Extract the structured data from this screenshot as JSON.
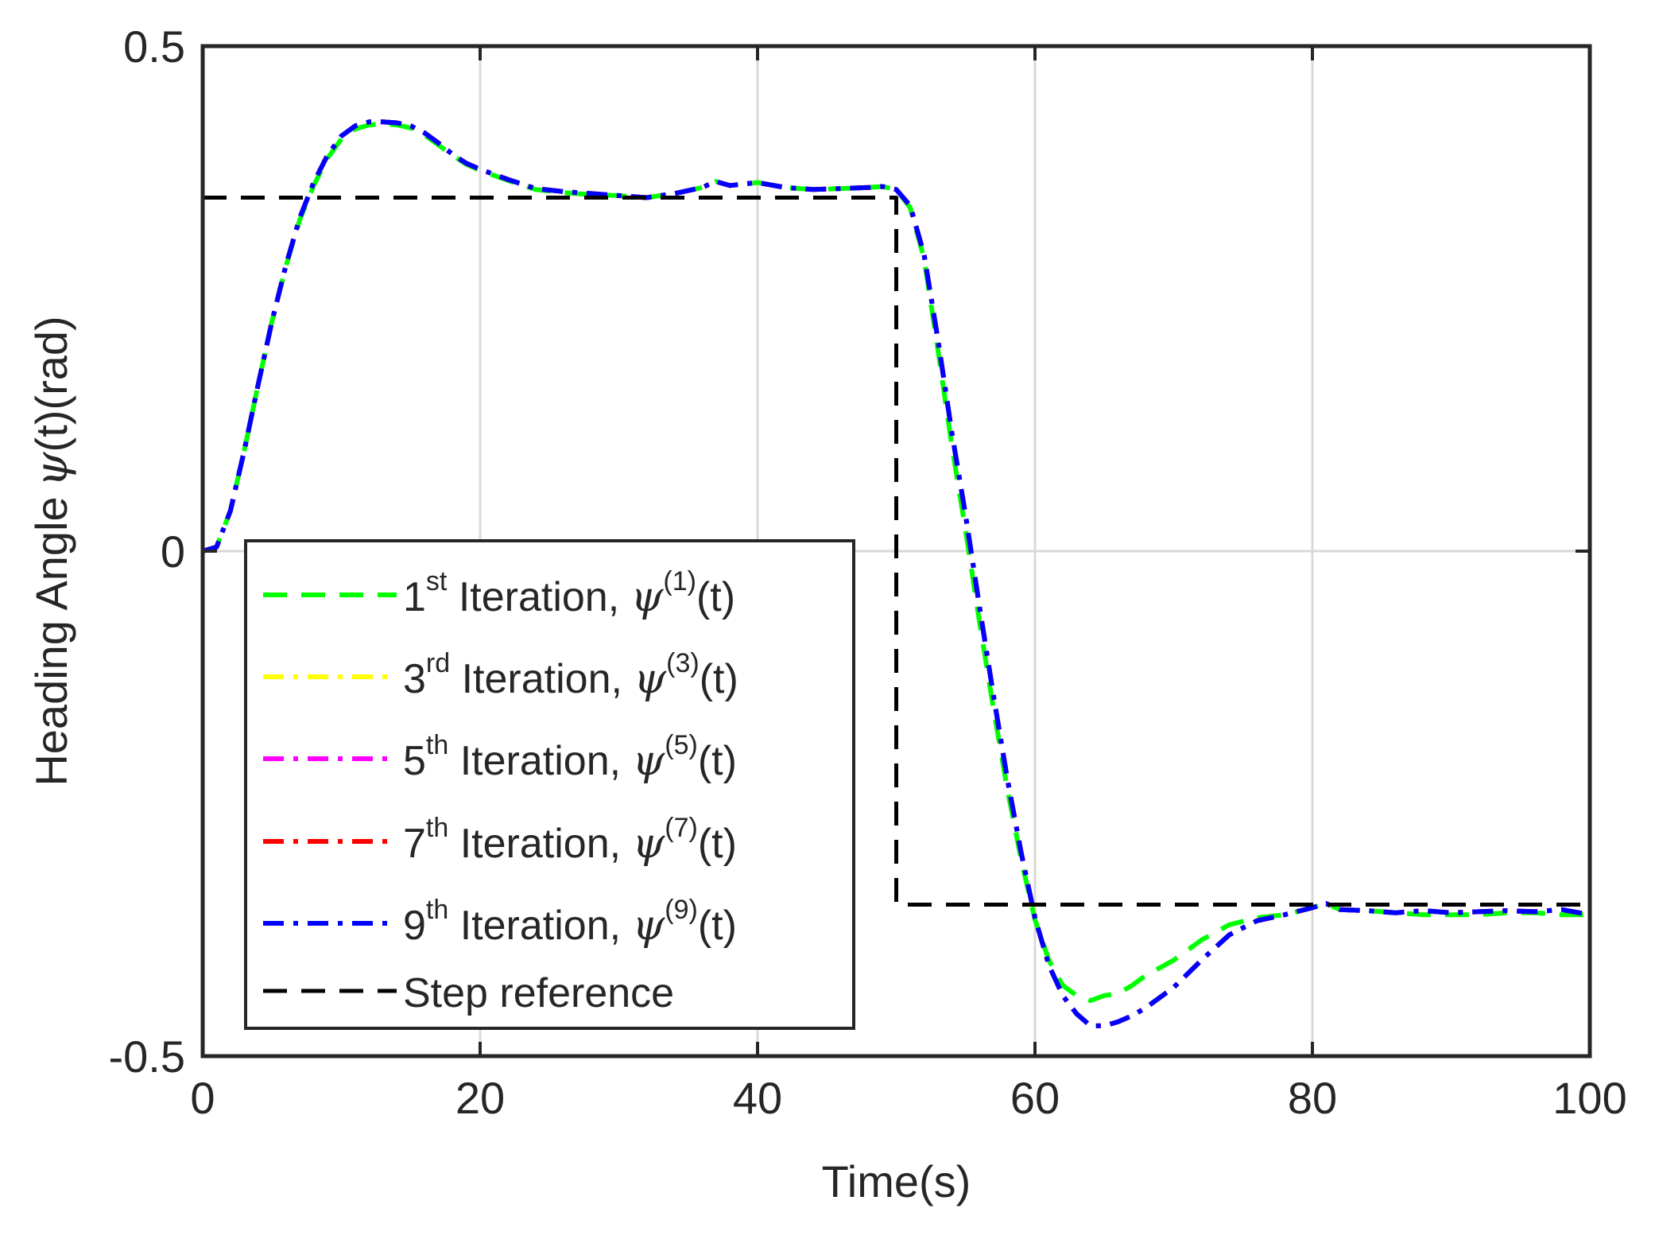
{
  "chart_data": {
    "type": "line",
    "title": "",
    "xlabel": "Time(s)",
    "ylabel": {
      "prefix": "Heading Angle",
      "symbol": "ψ",
      "suffix": "(t)(rad)"
    },
    "xlim": [
      0,
      100
    ],
    "ylim": [
      -0.5,
      0.5
    ],
    "xticks": [
      0,
      20,
      40,
      60,
      80,
      100
    ],
    "xtick_labels": [
      "0",
      "20",
      "40",
      "60",
      "80",
      "100"
    ],
    "yticks": [
      -0.5,
      0,
      0.5
    ],
    "ytick_labels": [
      "-0.5",
      "0",
      "0.5"
    ],
    "grid": true,
    "legend_position": "bottom-left",
    "series": [
      {
        "name": "1st Iteration, ψ(1)(t)",
        "legend": {
          "num": "1",
          "sup": "st",
          "mid": " Iteration, ",
          "psi": "ψ",
          "idx": "(1)",
          "tail": "(t)"
        },
        "color": "#00ff00",
        "style": "dashed",
        "x": [
          0,
          1,
          2,
          3,
          4,
          5,
          6,
          7,
          8,
          9,
          10,
          11,
          12,
          13,
          14,
          15,
          16,
          17,
          18,
          19,
          20,
          22,
          24,
          26,
          28,
          30,
          32,
          34,
          36,
          37,
          38,
          40,
          42,
          44,
          46,
          48,
          49,
          50,
          51,
          52,
          53,
          54,
          55,
          56,
          57,
          58,
          59,
          60,
          61,
          62,
          63,
          64,
          65,
          66,
          67,
          68,
          70,
          72,
          74,
          76,
          78,
          80,
          81,
          82,
          84,
          86,
          88,
          90,
          92,
          94,
          96,
          98,
          100
        ],
        "y": [
          0,
          0.004,
          0.04,
          0.1,
          0.165,
          0.228,
          0.282,
          0.328,
          0.362,
          0.389,
          0.408,
          0.418,
          0.422,
          0.423,
          0.422,
          0.419,
          0.412,
          0.402,
          0.392,
          0.383,
          0.377,
          0.367,
          0.358,
          0.355,
          0.353,
          0.352,
          0.35,
          0.354,
          0.36,
          0.366,
          0.362,
          0.365,
          0.36,
          0.358,
          0.359,
          0.36,
          0.361,
          0.358,
          0.34,
          0.29,
          0.2,
          0.105,
          0.02,
          -0.07,
          -0.155,
          -0.235,
          -0.305,
          -0.365,
          -0.405,
          -0.43,
          -0.44,
          -0.445,
          -0.44,
          -0.438,
          -0.43,
          -0.42,
          -0.405,
          -0.385,
          -0.37,
          -0.363,
          -0.36,
          -0.353,
          -0.349,
          -0.355,
          -0.356,
          -0.358,
          -0.36,
          -0.36,
          -0.36,
          -0.358,
          -0.358,
          -0.36,
          -0.36
        ]
      },
      {
        "name": "3rd Iteration, ψ(3)(t)",
        "legend": {
          "num": "3",
          "sup": "rd",
          "mid": " Iteration, ",
          "psi": "ψ",
          "idx": "(3)",
          "tail": "(t)"
        },
        "color": "#ffff00",
        "style": "dashdot",
        "x": [
          0,
          1,
          2,
          3,
          4,
          5,
          6,
          7,
          8,
          9,
          10,
          11,
          12,
          13,
          14,
          15,
          16,
          17,
          18,
          19,
          20,
          22,
          24,
          26,
          28,
          30,
          32,
          34,
          36,
          37,
          38,
          40,
          42,
          44,
          46,
          48,
          49,
          50,
          51,
          52,
          53,
          54,
          55,
          56,
          57,
          58,
          59,
          60,
          61,
          62,
          63,
          64,
          65,
          66,
          67,
          68,
          70,
          72,
          74,
          76,
          78,
          80,
          81,
          82,
          84,
          86,
          88,
          90,
          92,
          94,
          96,
          98,
          100
        ],
        "y": [
          0,
          0.004,
          0.04,
          0.1,
          0.165,
          0.228,
          0.283,
          0.33,
          0.365,
          0.392,
          0.411,
          0.421,
          0.425,
          0.425,
          0.424,
          0.421,
          0.414,
          0.404,
          0.393,
          0.384,
          0.378,
          0.368,
          0.359,
          0.356,
          0.354,
          0.352,
          0.35,
          0.354,
          0.36,
          0.366,
          0.362,
          0.365,
          0.36,
          0.358,
          0.359,
          0.36,
          0.361,
          0.358,
          0.342,
          0.294,
          0.21,
          0.118,
          0.035,
          -0.055,
          -0.142,
          -0.225,
          -0.298,
          -0.363,
          -0.41,
          -0.44,
          -0.458,
          -0.47,
          -0.47,
          -0.466,
          -0.46,
          -0.452,
          -0.432,
          -0.405,
          -0.38,
          -0.366,
          -0.36,
          -0.353,
          -0.349,
          -0.355,
          -0.356,
          -0.358,
          -0.356,
          -0.358,
          -0.357,
          -0.356,
          -0.357,
          -0.355,
          -0.36
        ]
      },
      {
        "name": "5th Iteration, ψ(5)(t)",
        "legend": {
          "num": "5",
          "sup": "th",
          "mid": " Iteration, ",
          "psi": "ψ",
          "idx": "(5)",
          "tail": "(t)"
        },
        "color": "#ff00ff",
        "style": "dashdot",
        "x": [
          0,
          1,
          2,
          3,
          4,
          5,
          6,
          7,
          8,
          9,
          10,
          11,
          12,
          13,
          14,
          15,
          16,
          17,
          18,
          19,
          20,
          22,
          24,
          26,
          28,
          30,
          32,
          34,
          36,
          37,
          38,
          40,
          42,
          44,
          46,
          48,
          49,
          50,
          51,
          52,
          53,
          54,
          55,
          56,
          57,
          58,
          59,
          60,
          61,
          62,
          63,
          64,
          65,
          66,
          67,
          68,
          70,
          72,
          74,
          76,
          78,
          80,
          81,
          82,
          84,
          86,
          88,
          90,
          92,
          94,
          96,
          98,
          100
        ],
        "y": [
          0,
          0.004,
          0.04,
          0.1,
          0.165,
          0.228,
          0.283,
          0.33,
          0.365,
          0.392,
          0.411,
          0.421,
          0.425,
          0.425,
          0.424,
          0.421,
          0.414,
          0.404,
          0.393,
          0.384,
          0.378,
          0.368,
          0.359,
          0.356,
          0.354,
          0.352,
          0.35,
          0.354,
          0.36,
          0.366,
          0.362,
          0.365,
          0.36,
          0.358,
          0.359,
          0.36,
          0.361,
          0.358,
          0.342,
          0.294,
          0.21,
          0.118,
          0.035,
          -0.055,
          -0.142,
          -0.225,
          -0.298,
          -0.363,
          -0.41,
          -0.44,
          -0.458,
          -0.47,
          -0.47,
          -0.466,
          -0.46,
          -0.452,
          -0.432,
          -0.405,
          -0.38,
          -0.366,
          -0.36,
          -0.353,
          -0.349,
          -0.355,
          -0.356,
          -0.358,
          -0.356,
          -0.358,
          -0.357,
          -0.356,
          -0.357,
          -0.355,
          -0.36
        ]
      },
      {
        "name": "7th Iteration, ψ(7)(t)",
        "legend": {
          "num": "7",
          "sup": "th",
          "mid": " Iteration, ",
          "psi": "ψ",
          "idx": "(7)",
          "tail": "(t)"
        },
        "color": "#ff0000",
        "style": "dashdot",
        "x": [
          0,
          1,
          2,
          3,
          4,
          5,
          6,
          7,
          8,
          9,
          10,
          11,
          12,
          13,
          14,
          15,
          16,
          17,
          18,
          19,
          20,
          22,
          24,
          26,
          28,
          30,
          32,
          34,
          36,
          37,
          38,
          40,
          42,
          44,
          46,
          48,
          49,
          50,
          51,
          52,
          53,
          54,
          55,
          56,
          57,
          58,
          59,
          60,
          61,
          62,
          63,
          64,
          65,
          66,
          67,
          68,
          70,
          72,
          74,
          76,
          78,
          80,
          81,
          82,
          84,
          86,
          88,
          90,
          92,
          94,
          96,
          98,
          100
        ],
        "y": [
          0,
          0.004,
          0.04,
          0.1,
          0.165,
          0.228,
          0.283,
          0.33,
          0.365,
          0.392,
          0.411,
          0.421,
          0.425,
          0.425,
          0.424,
          0.421,
          0.414,
          0.404,
          0.393,
          0.384,
          0.378,
          0.368,
          0.359,
          0.356,
          0.354,
          0.352,
          0.35,
          0.354,
          0.36,
          0.366,
          0.362,
          0.365,
          0.36,
          0.358,
          0.359,
          0.36,
          0.361,
          0.358,
          0.342,
          0.294,
          0.21,
          0.118,
          0.035,
          -0.055,
          -0.142,
          -0.225,
          -0.298,
          -0.363,
          -0.41,
          -0.44,
          -0.458,
          -0.47,
          -0.47,
          -0.466,
          -0.46,
          -0.452,
          -0.432,
          -0.405,
          -0.38,
          -0.366,
          -0.36,
          -0.353,
          -0.349,
          -0.355,
          -0.356,
          -0.358,
          -0.356,
          -0.358,
          -0.357,
          -0.356,
          -0.357,
          -0.355,
          -0.36
        ]
      },
      {
        "name": "9th Iteration, ψ(9)(t)",
        "legend": {
          "num": "9",
          "sup": "th",
          "mid": " Iteration, ",
          "psi": "ψ",
          "idx": "(9)",
          "tail": "(t)"
        },
        "color": "#0000ff",
        "style": "dashdot",
        "x": [
          0,
          1,
          2,
          3,
          4,
          5,
          6,
          7,
          8,
          9,
          10,
          11,
          12,
          13,
          14,
          15,
          16,
          17,
          18,
          19,
          20,
          22,
          24,
          26,
          28,
          30,
          32,
          34,
          36,
          37,
          38,
          40,
          42,
          44,
          46,
          48,
          49,
          50,
          51,
          52,
          53,
          54,
          55,
          56,
          57,
          58,
          59,
          60,
          61,
          62,
          63,
          64,
          65,
          66,
          67,
          68,
          70,
          72,
          74,
          76,
          78,
          80,
          81,
          82,
          84,
          86,
          88,
          90,
          92,
          94,
          96,
          98,
          100
        ],
        "y": [
          0,
          0.004,
          0.04,
          0.1,
          0.165,
          0.228,
          0.283,
          0.33,
          0.365,
          0.392,
          0.411,
          0.421,
          0.425,
          0.425,
          0.424,
          0.421,
          0.414,
          0.404,
          0.393,
          0.384,
          0.378,
          0.368,
          0.359,
          0.356,
          0.354,
          0.352,
          0.35,
          0.354,
          0.36,
          0.366,
          0.362,
          0.365,
          0.36,
          0.358,
          0.359,
          0.36,
          0.361,
          0.358,
          0.342,
          0.294,
          0.21,
          0.118,
          0.035,
          -0.055,
          -0.142,
          -0.225,
          -0.298,
          -0.363,
          -0.41,
          -0.44,
          -0.458,
          -0.47,
          -0.47,
          -0.466,
          -0.46,
          -0.452,
          -0.432,
          -0.405,
          -0.38,
          -0.366,
          -0.36,
          -0.353,
          -0.349,
          -0.355,
          -0.356,
          -0.358,
          -0.356,
          -0.358,
          -0.357,
          -0.356,
          -0.357,
          -0.355,
          -0.36
        ]
      },
      {
        "name": "Step reference",
        "legend": {
          "plain": "Step reference"
        },
        "color": "#000000",
        "style": "dashed",
        "x": [
          0,
          50,
          50,
          100
        ],
        "y": [
          0.35,
          0.35,
          -0.35,
          -0.35
        ]
      }
    ]
  }
}
